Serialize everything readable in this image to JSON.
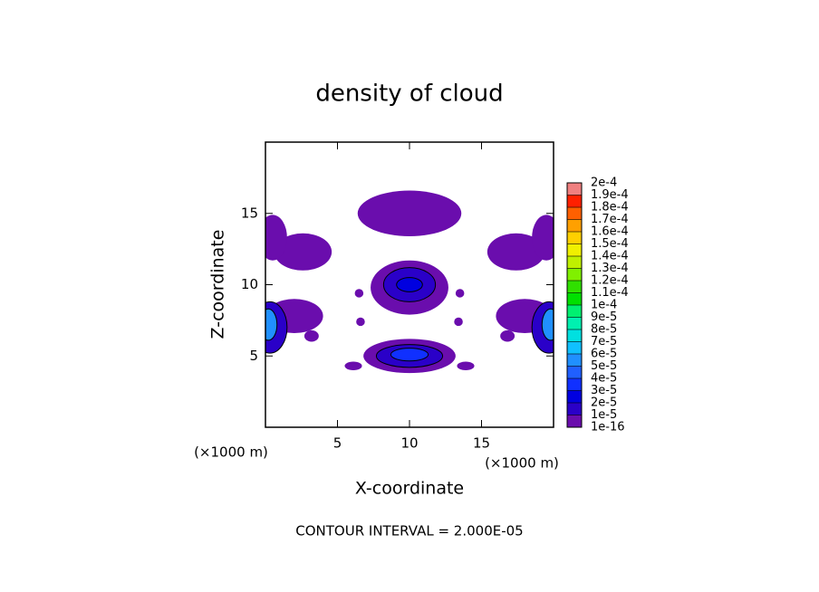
{
  "chart_data": {
    "type": "contour",
    "title": "density of cloud",
    "xlabel": "X-coordinate",
    "ylabel": "Z-coordinate",
    "x_unit": "(×1000 m)",
    "y_unit": "(×1000 m)",
    "note": "CONTOUR INTERVAL = 2.000E-05",
    "xlim": [
      0,
      20
    ],
    "ylim": [
      0,
      20
    ],
    "xticks": [
      5,
      10,
      15
    ],
    "yticks": [
      5,
      10,
      15
    ],
    "colorbar_ticks": [
      {
        "value": 1e-16,
        "label": "1e-16"
      },
      {
        "value": 1e-05,
        "label": "1e-5"
      },
      {
        "value": 2e-05,
        "label": "2e-5"
      },
      {
        "value": 3e-05,
        "label": "3e-5"
      },
      {
        "value": 4e-05,
        "label": "4e-5"
      },
      {
        "value": 5e-05,
        "label": "5e-5"
      },
      {
        "value": 6e-05,
        "label": "6e-5"
      },
      {
        "value": 7e-05,
        "label": "7e-5"
      },
      {
        "value": 8e-05,
        "label": "8e-5"
      },
      {
        "value": 9e-05,
        "label": "9e-5"
      },
      {
        "value": 0.0001,
        "label": "1e-4"
      },
      {
        "value": 0.00011,
        "label": "1.1e-4"
      },
      {
        "value": 0.00012,
        "label": "1.2e-4"
      },
      {
        "value": 0.00013,
        "label": "1.3e-4"
      },
      {
        "value": 0.00014,
        "label": "1.4e-4"
      },
      {
        "value": 0.00015,
        "label": "1.5e-4"
      },
      {
        "value": 0.00016,
        "label": "1.6e-4"
      },
      {
        "value": 0.00017,
        "label": "1.7e-4"
      },
      {
        "value": 0.00018,
        "label": "1.8e-4"
      },
      {
        "value": 0.00019,
        "label": "1.9e-4"
      },
      {
        "value": 0.0002,
        "label": "2e-4"
      }
    ],
    "colorbar_colors": [
      "#6a0dad",
      "#2a00c8",
      "#0000e0",
      "#1030ff",
      "#2060ff",
      "#2090ff",
      "#10c0ff",
      "#00e0e0",
      "#00f0b0",
      "#00f070",
      "#00e000",
      "#30e000",
      "#80f000",
      "#c0f000",
      "#f0f000",
      "#ffd000",
      "#ffa000",
      "#ff6000",
      "#ff2000",
      "#f08080"
    ],
    "regions": [
      {
        "x": 10,
        "z": 15,
        "rx": 3.6,
        "rz": 1.6,
        "value": 5e-06
      },
      {
        "x": 2.6,
        "z": 12.3,
        "rx": 2,
        "rz": 1.3,
        "value": 5e-06
      },
      {
        "x": 17.4,
        "z": 12.3,
        "rx": 2,
        "rz": 1.3,
        "value": 5e-06
      },
      {
        "x": 0.5,
        "z": 13.3,
        "rx": 1,
        "rz": 1.6,
        "value": 5e-06
      },
      {
        "x": 19.5,
        "z": 13.3,
        "rx": 1,
        "rz": 1.6,
        "value": 5e-06
      },
      {
        "x": 10,
        "z": 9.8,
        "rx": 2.7,
        "rz": 1.9,
        "value": 5e-06
      },
      {
        "x": 10,
        "z": 10,
        "rx": 1.8,
        "rz": 1.2,
        "value": 1.5e-05
      },
      {
        "x": 10,
        "z": 10,
        "rx": 0.9,
        "rz": 0.5,
        "value": 2.5e-05
      },
      {
        "x": 10,
        "z": 5,
        "rx": 3.2,
        "rz": 1.2,
        "value": 5e-06
      },
      {
        "x": 10,
        "z": 5,
        "rx": 2.3,
        "rz": 0.8,
        "value": 1.5e-05
      },
      {
        "x": 10,
        "z": 5.1,
        "rx": 1.3,
        "rz": 0.45,
        "value": 3.5e-05
      },
      {
        "x": 2,
        "z": 7.8,
        "rx": 2,
        "rz": 1.2,
        "value": 5e-06
      },
      {
        "x": 18,
        "z": 7.8,
        "rx": 2,
        "rz": 1.2,
        "value": 5e-06
      },
      {
        "x": 0.3,
        "z": 7,
        "rx": 1.2,
        "rz": 1.8,
        "value": 1.5e-05
      },
      {
        "x": 19.7,
        "z": 7,
        "rx": 1.2,
        "rz": 1.8,
        "value": 1.5e-05
      },
      {
        "x": 0.2,
        "z": 7.2,
        "rx": 0.6,
        "rz": 1.1,
        "value": 5.5e-05
      },
      {
        "x": 19.8,
        "z": 7.2,
        "rx": 0.6,
        "rz": 1.1,
        "value": 5.5e-05
      },
      {
        "x": 3.2,
        "z": 6.4,
        "rx": 0.5,
        "rz": 0.4,
        "value": 5e-06
      },
      {
        "x": 16.8,
        "z": 6.4,
        "rx": 0.5,
        "rz": 0.4,
        "value": 5e-06
      },
      {
        "x": 6.5,
        "z": 9.4,
        "rx": 0.3,
        "rz": 0.3,
        "value": 5e-06
      },
      {
        "x": 13.5,
        "z": 9.4,
        "rx": 0.3,
        "rz": 0.3,
        "value": 5e-06
      },
      {
        "x": 6.6,
        "z": 7.4,
        "rx": 0.3,
        "rz": 0.3,
        "value": 5e-06
      },
      {
        "x": 13.4,
        "z": 7.4,
        "rx": 0.3,
        "rz": 0.3,
        "value": 5e-06
      },
      {
        "x": 6.1,
        "z": 4.3,
        "rx": 0.6,
        "rz": 0.3,
        "value": 5e-06
      },
      {
        "x": 13.9,
        "z": 4.3,
        "rx": 0.6,
        "rz": 0.3,
        "value": 5e-06
      }
    ]
  }
}
